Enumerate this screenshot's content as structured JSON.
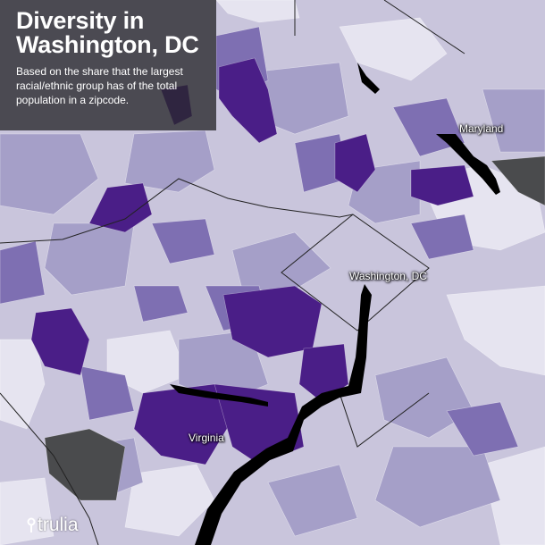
{
  "title": {
    "heading": "Diversity in Washington, DC",
    "description": "Based on the share that the largest racial/ethnic group has of the total population in a zipcode."
  },
  "map_labels": {
    "maryland": "Maryland",
    "washington_dc": "Washington, DC",
    "virginia": "Virginia"
  },
  "logo": {
    "text": "trulia",
    "icon": "map-pin-icon"
  },
  "colors": {
    "lightest": "#e6e4f0",
    "light": "#c9c5dc",
    "medium": "#a59fc8",
    "dark": "#7e6fb2",
    "darkest": "#4a1e87",
    "no_data": "#4a4b4d",
    "river": "#000000"
  }
}
